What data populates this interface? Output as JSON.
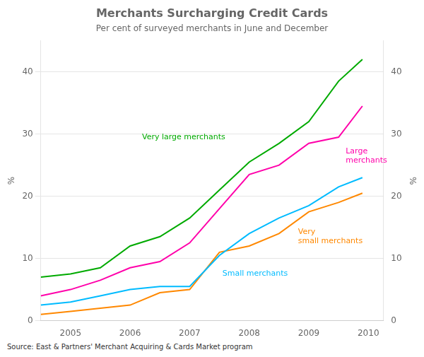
{
  "chart_data": {
    "type": "line",
    "title": "Merchants Surcharging Credit Cards",
    "subtitle": "Per cent of surveyed merchants in June and December",
    "source": "Source: East & Partners' Merchant Acquiring & Cards Market program",
    "ylabel": "%",
    "y2label": "%",
    "xlim": [
      2004.5,
      2010.25
    ],
    "xticks": [
      2005,
      2006,
      2007,
      2008,
      2009,
      2010
    ],
    "ylim": [
      0,
      45
    ],
    "yticks": [
      0,
      10,
      20,
      30,
      40
    ],
    "y2lim": [
      0,
      45
    ],
    "y2ticks": [
      0,
      10,
      20,
      30,
      40
    ],
    "grid": "y",
    "x": [
      2004.5,
      2005.0,
      2005.5,
      2006.0,
      2006.5,
      2007.0,
      2007.5,
      2008.0,
      2008.5,
      2009.0,
      2009.5,
      2009.9
    ],
    "series": [
      {
        "name": "Very large merchants",
        "color": "#00aa00",
        "values": [
          7.0,
          7.5,
          8.5,
          12.0,
          13.5,
          16.5,
          21.0,
          25.5,
          28.5,
          32.0,
          38.5,
          42.0
        ]
      },
      {
        "name": "Large\nmerchants",
        "color": "#ff00aa",
        "values": [
          4.0,
          5.0,
          6.5,
          8.5,
          9.5,
          12.5,
          18.0,
          23.5,
          25.0,
          28.5,
          29.5,
          34.5
        ]
      },
      {
        "name": "Small merchants",
        "color": "#00bbff",
        "values": [
          2.5,
          3.0,
          4.0,
          5.0,
          5.5,
          5.5,
          10.5,
          14.0,
          16.5,
          18.5,
          21.5,
          23.0
        ]
      },
      {
        "name": "Very\nsmall merchants",
        "color": "#ff8800",
        "values": [
          1.0,
          1.5,
          2.0,
          2.5,
          4.5,
          5.0,
          11.0,
          12.0,
          14.0,
          17.5,
          19.0,
          20.5
        ]
      }
    ],
    "annotations": [
      {
        "text": "Very large merchants",
        "x": 2006.2,
        "y": 29.5,
        "color": "#00aa00"
      },
      {
        "text": "Large\nmerchants",
        "x": 2009.62,
        "y": 26.5,
        "color": "#ff00aa"
      },
      {
        "text": "Small merchants",
        "x": 2007.55,
        "y": 7.5,
        "color": "#00bbff"
      },
      {
        "text": "Very\nsmall merchants",
        "x": 2008.82,
        "y": 13.5,
        "color": "#ff8800"
      }
    ]
  }
}
